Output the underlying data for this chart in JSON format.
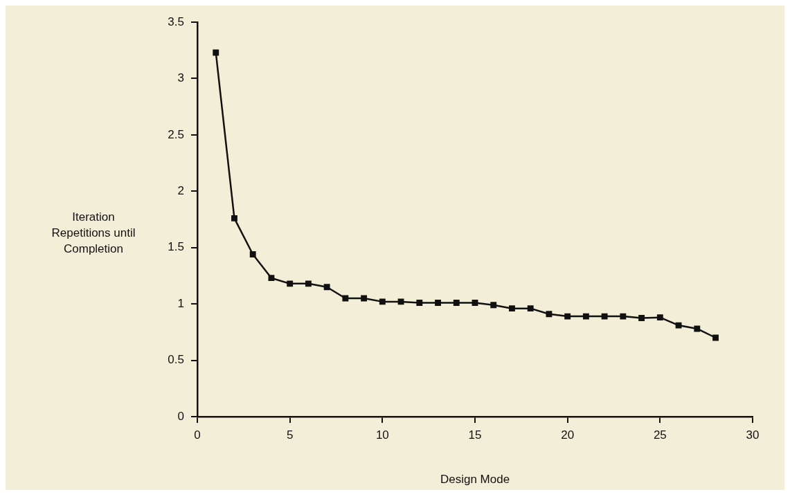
{
  "chart_data": {
    "type": "line",
    "xlabel": "Design Mode",
    "ylabel": "Iteration\nRepetitions until\nCompletion",
    "x": [
      1,
      2,
      3,
      4,
      5,
      6,
      7,
      8,
      9,
      10,
      11,
      12,
      13,
      14,
      15,
      16,
      17,
      18,
      19,
      20,
      21,
      22,
      23,
      24,
      25,
      26,
      27,
      28
    ],
    "series": [
      {
        "color": "#111111",
        "values": [
          3.23,
          1.76,
          1.44,
          1.23,
          1.18,
          1.18,
          1.15,
          1.05,
          1.05,
          1.02,
          1.02,
          1.01,
          1.01,
          1.01,
          1.01,
          0.99,
          0.96,
          0.96,
          0.91,
          0.89,
          0.89,
          0.89,
          0.89,
          0.875,
          0.88,
          0.81,
          0.78,
          0.7
        ]
      }
    ],
    "xlim": [
      0,
      30
    ],
    "xticks": [
      0,
      5,
      10,
      15,
      20,
      25,
      30
    ],
    "ylim": [
      0,
      3.5
    ],
    "yticks": [
      0,
      0.5,
      1,
      1.5,
      2,
      2.5,
      3,
      3.5
    ],
    "grid": false,
    "legend": false,
    "marker": "square",
    "line_style": "solid"
  }
}
